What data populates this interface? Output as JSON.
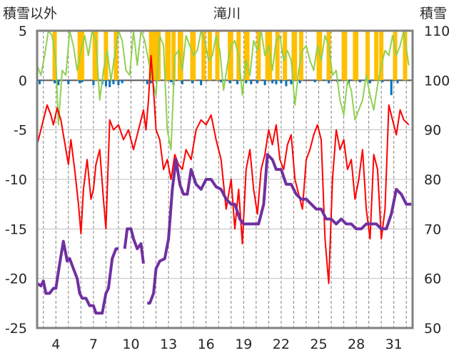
{
  "chart_data": {
    "type": "line",
    "title": "滝川",
    "left_axis_label": "積雪以外",
    "right_axis_label": "積雪",
    "left_ylim": [
      -25,
      5
    ],
    "left_ticks": [
      5,
      0,
      -5,
      -10,
      -15,
      -20,
      -25
    ],
    "right_ylim": [
      50,
      110
    ],
    "right_ticks": [
      110,
      100,
      90,
      80,
      70,
      60,
      50
    ],
    "x_range": [
      2.5,
      32.5
    ],
    "x_ticks": [
      4,
      7,
      10,
      13,
      16,
      19,
      22,
      25,
      28,
      31
    ],
    "grid": "vertical dashed lines per day",
    "colors": {
      "temperature": "#ff0000",
      "snow_depth": "#7030a0",
      "sunshine": "#92d050",
      "snowfall": "#ffc000",
      "precip": "#0070c0"
    },
    "series": [
      {
        "key": "temperature",
        "axis": "left",
        "x": [
          2.5,
          2.9,
          3.3,
          3.6,
          3.8,
          4.1,
          4.4,
          4.8,
          5.0,
          5.2,
          5.5,
          5.8,
          6.0,
          6.2,
          6.5,
          6.8,
          7.0,
          7.2,
          7.5,
          7.8,
          8.0,
          8.3,
          8.6,
          9.0,
          9.4,
          9.8,
          10.2,
          10.6,
          11.0,
          11.2,
          11.4,
          11.6,
          11.8,
          12.0,
          12.3,
          12.6,
          12.9,
          13.2,
          13.5,
          13.8,
          14.1,
          14.4,
          14.8,
          15.2,
          15.6,
          16.0,
          16.4,
          16.8,
          17.2,
          17.6,
          18.0,
          18.3,
          18.6,
          18.9,
          19.2,
          19.5,
          19.8,
          20.1,
          20.4,
          20.7,
          21.0,
          21.3,
          21.6,
          21.9,
          22.2,
          22.5,
          22.8,
          23.1,
          23.4,
          23.7,
          24.0,
          24.3,
          24.6,
          24.9,
          25.2,
          25.5,
          25.8,
          26.1,
          26.4,
          26.7,
          27.0,
          27.3,
          27.6,
          27.9,
          28.2,
          28.5,
          28.8,
          29.1,
          29.4,
          29.7,
          30.0,
          30.3,
          30.6,
          30.9,
          31.2,
          31.5,
          31.8,
          32.2
        ],
        "y": [
          -6.5,
          -4.5,
          -2.5,
          -3.5,
          -4.5,
          -2.8,
          -4.0,
          -7.0,
          -8.5,
          -6.0,
          -9.0,
          -12.5,
          -15.5,
          -11.0,
          -8.0,
          -12.0,
          -11.0,
          -8.5,
          -7.0,
          -12.0,
          -15.0,
          -4.0,
          -5.0,
          -4.5,
          -6.0,
          -5.0,
          -7.0,
          -5.0,
          -3.0,
          -5.0,
          -2.0,
          2.5,
          -1.0,
          -5.0,
          -6.0,
          -9.0,
          -8.0,
          -10.0,
          -7.5,
          -8.5,
          -9.0,
          -7.0,
          -8.0,
          -5.0,
          -4.0,
          -4.5,
          -3.5,
          -6.0,
          -8.0,
          -13.0,
          -10.0,
          -15.0,
          -11.0,
          -16.5,
          -9.0,
          -7.0,
          -11.0,
          -13.5,
          -9.0,
          -7.5,
          -5.0,
          -6.5,
          -4.5,
          -8.0,
          -9.0,
          -6.5,
          -5.5,
          -10.0,
          -11.5,
          -13.0,
          -8.0,
          -7.0,
          -5.5,
          -4.5,
          -6.0,
          -16.0,
          -20.5,
          -10.0,
          -5.0,
          -7.0,
          -6.0,
          -9.0,
          -8.0,
          -12.0,
          -10.0,
          -7.0,
          -13.0,
          -16.0,
          -7.5,
          -9.0,
          -16.0,
          -13.0,
          -2.5,
          -4.0,
          -5.5,
          -3.0,
          -4.0,
          -4.5
        ]
      },
      {
        "key": "snow_depth",
        "axis": "right",
        "segments": [
          {
            "x": [
              2.5,
              2.8,
              3.0,
              3.2,
              3.5,
              3.8,
              4.0,
              4.3,
              4.6,
              4.9,
              5.1,
              5.4,
              5.7,
              5.9,
              6.1,
              6.4,
              6.7,
              7.0,
              7.2,
              7.5,
              7.7,
              8.0,
              8.2,
              8.5,
              8.8,
              9.0
            ],
            "y": [
              59,
              58.5,
              59.5,
              57,
              57,
              58,
              58,
              63,
              67.5,
              63.5,
              64,
              62,
              60,
              57,
              56,
              56,
              54.5,
              54.5,
              53,
              53,
              53,
              57,
              58,
              64,
              66,
              66
            ]
          },
          {
            "x": [
              9.5,
              9.7,
              10.0,
              10.2,
              10.5,
              10.8,
              11.0
            ],
            "y": [
              66,
              70,
              70,
              68,
              66,
              67,
              63
            ]
          },
          {
            "x": [
              11.3,
              11.5,
              11.8,
              12.0,
              12.3,
              12.7,
              13.0,
              13.3,
              13.6,
              13.9,
              14.2,
              14.5,
              14.8,
              15.2,
              15.6,
              16.0,
              16.4,
              16.8,
              17.2,
              17.6,
              18.0,
              18.3,
              18.7,
              19.0,
              19.4,
              19.8,
              20.2,
              20.6,
              20.9,
              21.3,
              21.6,
              22.0,
              22.4,
              22.8,
              23.2,
              23.6,
              24.0,
              24.4,
              24.8,
              25.2,
              25.6,
              26.0,
              26.4,
              26.8,
              27.2,
              27.6,
              28.0,
              28.4,
              28.8,
              29.2,
              29.6,
              30.0,
              30.4,
              30.8,
              31.2,
              31.6,
              32.0,
              32.4
            ],
            "y": [
              55,
              55,
              57,
              62,
              63.5,
              64,
              68,
              78,
              84,
              79,
              77,
              77,
              82,
              79,
              78,
              80,
              80,
              78.5,
              78,
              76,
              75,
              75,
              72,
              71,
              71,
              71,
              71,
              75,
              85,
              84,
              82,
              82,
              79,
              79,
              77,
              76,
              76,
              75,
              74,
              74,
              72,
              72,
              71,
              72,
              71,
              71,
              70,
              70,
              71,
              71,
              71,
              70,
              70,
              73,
              78,
              77,
              75,
              75
            ]
          }
        ]
      },
      {
        "key": "sunshine",
        "axis": "left_upper",
        "range": [
          0,
          5
        ],
        "note": "hourly sunshine plotted in the 0–5 band, dipping below zero where the panel ends",
        "x": [
          2.5,
          2.8,
          3.1,
          3.4,
          3.7,
          4.0,
          4.2,
          4.5,
          4.8,
          5.1,
          5.4,
          5.7,
          6.0,
          6.3,
          6.6,
          6.9,
          7.2,
          7.5,
          7.8,
          8.1,
          8.4,
          8.7,
          9.0,
          9.3,
          9.6,
          9.9,
          10.2,
          10.5,
          10.8,
          11.1,
          11.4,
          11.7,
          12.0,
          12.3,
          12.6,
          12.9,
          13.2,
          13.5,
          13.8,
          14.1,
          14.4,
          14.7,
          15.0,
          15.3,
          15.6,
          15.9,
          16.2,
          16.5,
          16.8,
          17.1,
          17.4,
          17.7,
          18.0,
          18.3,
          18.6,
          18.9,
          19.2,
          19.5,
          19.8,
          20.1,
          20.4,
          20.7,
          21.0,
          21.3,
          21.6,
          21.9,
          22.2,
          22.5,
          22.8,
          23.1,
          23.4,
          23.7,
          24.0,
          24.3,
          24.6,
          24.9,
          25.2,
          25.5,
          25.8,
          26.1,
          26.4,
          26.7,
          27.0,
          27.3,
          27.6,
          27.9,
          28.2,
          28.5,
          28.8,
          29.1,
          29.4,
          29.7,
          30.0,
          30.3,
          30.6,
          30.9,
          31.2,
          31.5,
          31.8,
          32.2
        ],
        "y": [
          1.5,
          0.5,
          2.5,
          5.0,
          4.5,
          2.0,
          -4.5,
          1.0,
          0.5,
          5.0,
          3.5,
          1.0,
          3.0,
          4.5,
          2.5,
          5.0,
          4.0,
          -2.0,
          1.0,
          3.0,
          0.0,
          2.5,
          5.0,
          4.0,
          1.0,
          0.5,
          5.0,
          1.5,
          5.0,
          4.0,
          2.0,
          0.0,
          -1.5,
          4.5,
          3.5,
          -5.0,
          -7.0,
          2.5,
          3.0,
          1.0,
          4.5,
          3.5,
          2.5,
          3.0,
          5.0,
          4.0,
          2.0,
          2.5,
          4.5,
          3.0,
          -1.0,
          1.5,
          3.5,
          4.0,
          2.5,
          -1.5,
          2.0,
          0.5,
          4.0,
          3.0,
          5.0,
          2.5,
          3.5,
          1.0,
          4.0,
          4.5,
          2.0,
          3.0,
          2.0,
          -2.5,
          1.0,
          3.0,
          3.5,
          2.0,
          1.0,
          3.5,
          2.0,
          4.5,
          3.5,
          0.5,
          1.0,
          -2.0,
          -3.5,
          0.0,
          -1.0,
          -4.0,
          -3.0,
          -2.0,
          0.5,
          -1.5,
          -3.0,
          -0.5,
          1.5,
          3.0,
          2.5,
          4.5,
          2.5,
          3.5,
          5.0,
          1.5
        ]
      },
      {
        "key": "snowfall",
        "axis": "left_upper",
        "type": "bar",
        "x": [
          3.9,
          5.9,
          6.1,
          7.1,
          7.2,
          8.0,
          8.8,
          11.6,
          11.9,
          12.2,
          12.9,
          13.0,
          13.4,
          13.9,
          14.0,
          14.9,
          15.0,
          15.8,
          16.3,
          16.9,
          17.9,
          18.0,
          18.6,
          19.2,
          19.3,
          20.2,
          20.9,
          21.1,
          21.7,
          22.3,
          23.0,
          23.1,
          23.6,
          25.0,
          25.1,
          25.8,
          27.0,
          27.1,
          27.9,
          28.0,
          28.9,
          29.6,
          30.0,
          31.1,
          31.9
        ],
        "y": [
          5,
          5,
          5,
          5,
          5,
          5,
          5,
          5,
          5,
          5,
          5,
          5,
          5,
          5,
          5,
          5,
          5,
          5,
          5,
          5,
          5,
          5,
          5,
          5,
          5,
          5,
          5,
          5,
          5,
          5,
          5,
          5,
          5,
          5,
          5,
          5,
          5,
          5,
          5,
          5,
          5,
          5,
          5,
          5,
          5
        ]
      },
      {
        "key": "precip",
        "axis": "left_upper",
        "type": "bar",
        "x": [
          2.7,
          3.9,
          4.2,
          5.0,
          5.9,
          6.1,
          7.0,
          7.7,
          8.0,
          8.3,
          8.6,
          9.0,
          9.3,
          11.3,
          11.6,
          13.2,
          13.4,
          14.1,
          14.9,
          15.6,
          17.2,
          17.9,
          18.5,
          19.2,
          19.6,
          20.1,
          20.7,
          21.3,
          21.6,
          22.0,
          22.4,
          22.8,
          23.5,
          24.7,
          25.8,
          26.5,
          27.4,
          28.3,
          29.1,
          30.1,
          30.8,
          31.3
        ],
        "y": [
          -0.4,
          -0.3,
          -0.5,
          -0.4,
          -0.3,
          -0.2,
          -0.5,
          -0.4,
          -0.6,
          -0.7,
          -0.4,
          -0.5,
          -0.3,
          -0.4,
          -0.3,
          -0.2,
          -0.5,
          -0.4,
          -0.3,
          -0.5,
          -0.2,
          -0.3,
          -0.4,
          -0.3,
          -0.4,
          -0.3,
          -0.5,
          -0.3,
          -0.4,
          -0.3,
          -0.6,
          -0.4,
          -0.3,
          -0.2,
          -0.3,
          -0.2,
          -0.4,
          -0.2,
          -0.3,
          -0.2,
          -1.5,
          -0.3
        ]
      }
    ]
  }
}
